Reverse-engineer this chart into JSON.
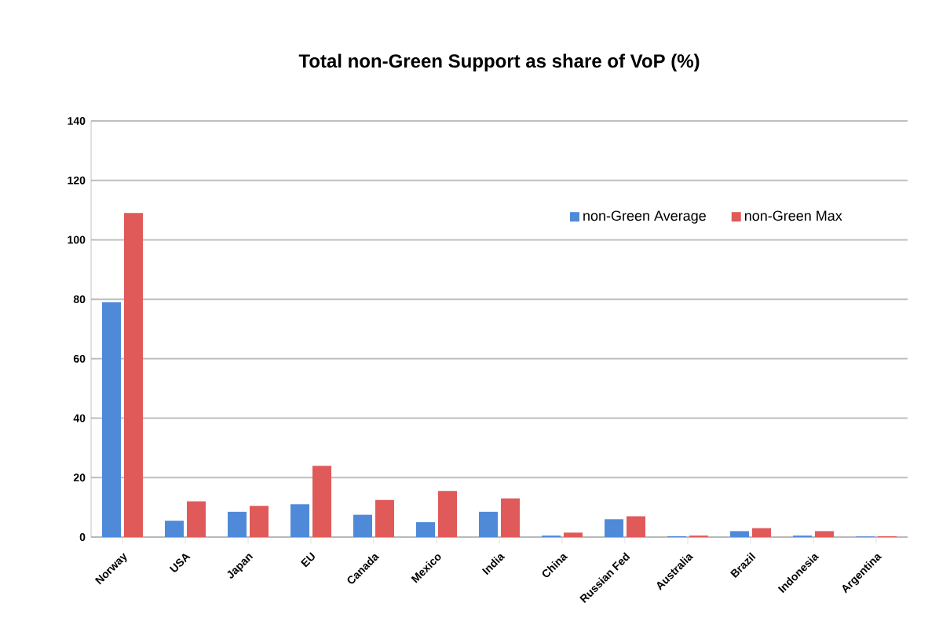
{
  "chart_data": {
    "type": "bar",
    "title": "Total non-Green Support as share of VoP (%)",
    "categories": [
      "Norway",
      "USA",
      "Japan",
      "EU",
      "Canada",
      "Mexico",
      "India",
      "China",
      "Russian Fed",
      "Australia",
      "Brazil",
      "Indonesia",
      "Argentina"
    ],
    "series": [
      {
        "name": "non-Green Average",
        "color": "#4f8ad9",
        "values": [
          79,
          5.5,
          8.5,
          11,
          7.5,
          5,
          8.5,
          0.5,
          6,
          0.3,
          2,
          0.5,
          0.2
        ]
      },
      {
        "name": "non-Green Max",
        "color": "#e05a5a",
        "values": [
          109,
          12,
          10.5,
          24,
          12.5,
          15.5,
          13,
          1.5,
          7,
          0.5,
          3,
          2,
          0.3
        ]
      }
    ],
    "ylim": [
      0,
      140
    ],
    "yticks": [
      0,
      20,
      40,
      60,
      80,
      100,
      120,
      140
    ],
    "grid": "y",
    "legend": "top right"
  }
}
